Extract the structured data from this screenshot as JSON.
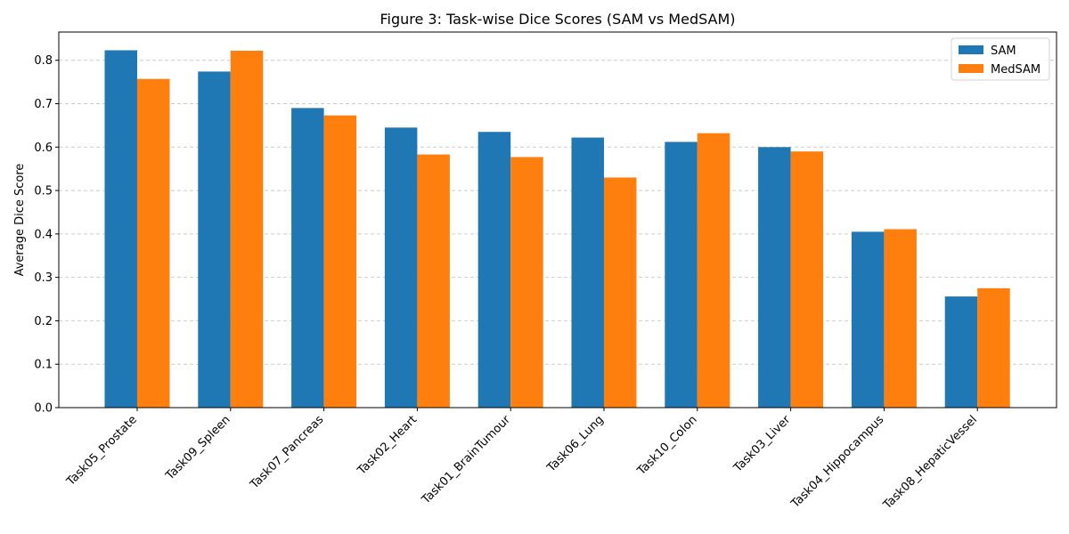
{
  "chart_data": {
    "type": "bar",
    "title": "Figure 3: Task-wise Dice Scores (SAM vs MedSAM)",
    "xlabel": "",
    "ylabel": "Average Dice Score",
    "ylim": [
      0,
      0.865
    ],
    "yticks": [
      "0.0",
      "0.1",
      "0.2",
      "0.3",
      "0.4",
      "0.5",
      "0.6",
      "0.7",
      "0.8"
    ],
    "grid": "y-dashed",
    "legend_position": "top-right",
    "categories": [
      "Task05_Prostate",
      "Task09_Spleen",
      "Task07_Pancreas",
      "Task02_Heart",
      "Task01_BrainTumour",
      "Task06_Lung",
      "Task10_Colon",
      "Task03_Liver",
      "Task04_Hippocampus",
      "Task08_HepaticVessel"
    ],
    "series": [
      {
        "name": "SAM",
        "color": "#1f77b4",
        "values": [
          0.823,
          0.774,
          0.69,
          0.645,
          0.635,
          0.622,
          0.612,
          0.6,
          0.405,
          0.256
        ]
      },
      {
        "name": "MedSAM",
        "color": "#ff7f0e",
        "values": [
          0.757,
          0.822,
          0.673,
          0.583,
          0.577,
          0.53,
          0.632,
          0.59,
          0.411,
          0.275
        ]
      }
    ]
  }
}
